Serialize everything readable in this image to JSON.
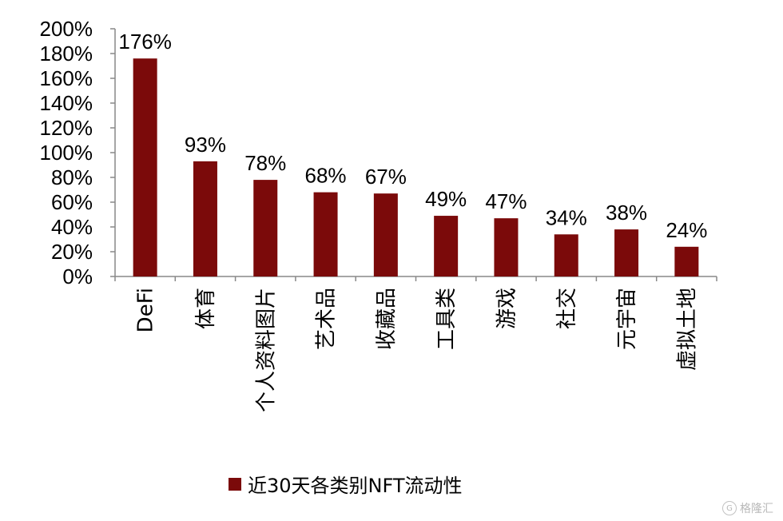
{
  "chart_data": {
    "type": "bar",
    "categories": [
      "DeFi",
      "体育",
      "个人资料图片",
      "艺术品",
      "收藏品",
      "工具类",
      "游戏",
      "社交",
      "元宇宙",
      "虚拟土地"
    ],
    "series": [
      {
        "name": "近30天各类别NFT流动性",
        "values": [
          176,
          93,
          78,
          68,
          67,
          49,
          47,
          34,
          38,
          24
        ]
      }
    ],
    "data_labels": [
      "176%",
      "93%",
      "78%",
      "68%",
      "67%",
      "49%",
      "47%",
      "34%",
      "38%",
      "24%"
    ],
    "y_ticks": [
      "0%",
      "20%",
      "40%",
      "60%",
      "80%",
      "100%",
      "120%",
      "140%",
      "160%",
      "180%",
      "200%"
    ],
    "ylim": [
      0,
      200
    ],
    "title": "",
    "xlabel": "",
    "ylabel": "",
    "grid": false,
    "legend_position": "bottom",
    "bar_color": "#7b0a0a"
  },
  "watermark": {
    "icon": "g-circle-icon",
    "text": "格隆汇"
  }
}
